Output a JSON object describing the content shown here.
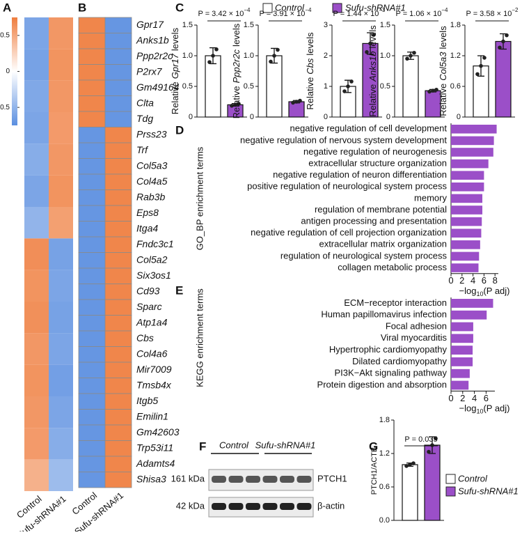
{
  "panel_labels": [
    "A",
    "B",
    "C",
    "D",
    "E",
    "F",
    "G"
  ],
  "legend_c": [
    {
      "name": "Control",
      "color": "#ffffff"
    },
    {
      "name": "Sufu-shRNA#1",
      "color": "#9b4fc8"
    }
  ],
  "blot": {
    "groups": [
      "Control",
      "Sufu-shRNA#1"
    ],
    "rows": [
      {
        "size": "161 kDa",
        "name": "PTCH1"
      },
      {
        "size": "42 kDa",
        "name": "β-actin"
      }
    ]
  },
  "chart_data": [
    {
      "type": "heatmap",
      "x_labels": [
        "Control",
        "Sufu-shRNA#1"
      ],
      "clim": [
        -0.75,
        0.75
      ],
      "colorbar_ticks": [
        0.5,
        0,
        -0.5
      ],
      "values": [
        [
          -0.6,
          0.6
        ],
        [
          -0.62,
          0.62
        ],
        [
          -0.58,
          0.6
        ],
        [
          -0.6,
          0.58
        ],
        [
          -0.55,
          0.6
        ],
        [
          -0.6,
          0.62
        ],
        [
          -0.5,
          0.55
        ],
        [
          0.65,
          -0.62
        ],
        [
          0.62,
          -0.6
        ],
        [
          0.64,
          -0.62
        ],
        [
          0.6,
          -0.6
        ],
        [
          0.62,
          -0.64
        ],
        [
          0.6,
          -0.6
        ],
        [
          0.58,
          -0.55
        ],
        [
          0.45,
          -0.45
        ]
      ]
    },
    {
      "type": "heatmap",
      "x_labels": [
        "Control",
        "Sufu-shRNA#1"
      ],
      "clim": [
        -0.75,
        0.75
      ],
      "rows": [
        "Gpr17",
        "Anks1b",
        "Ppp2r2c",
        "P2rx7",
        "Gm49164",
        "Clta",
        "Tdg",
        "Prss23",
        "Trf",
        "Col5a3",
        "Col4a5",
        "Rab3b",
        "Eps8",
        "Itga4",
        "Fndc3c1",
        "Col5a2",
        "Six3os1",
        "Cd93",
        "Sparc",
        "Atp1a4",
        "Cbs",
        "Col4a6",
        "Mir7009",
        "Tmsb4x",
        "Itgb5",
        "Emilin1",
        "Gm42603",
        "Trp53i11",
        "Adamts4",
        "Shisa3"
      ],
      "label_colors": [
        "#d42a2a",
        "#d42a2a",
        "#d42a2a",
        "#111111",
        "#111111",
        "#111111",
        "#111111",
        "#111111",
        "#111111",
        "#d42a2a",
        "#111111",
        "#111111",
        "#111111",
        "#111111",
        "#111111",
        "#111111",
        "#111111",
        "#111111",
        "#111111",
        "#111111",
        "#d42a2a",
        "#111111",
        "#111111",
        "#111111",
        "#111111",
        "#111111",
        "#111111",
        "#111111",
        "#111111",
        "#111111"
      ],
      "values": [
        [
          0.7,
          -0.7
        ],
        [
          0.7,
          -0.7
        ],
        [
          0.7,
          -0.7
        ],
        [
          0.7,
          -0.7
        ],
        [
          0.7,
          -0.7
        ],
        [
          0.7,
          -0.7
        ],
        [
          0.7,
          -0.7
        ],
        [
          -0.7,
          0.7
        ],
        [
          -0.7,
          0.7
        ],
        [
          -0.7,
          0.7
        ],
        [
          -0.7,
          0.7
        ],
        [
          -0.7,
          0.7
        ],
        [
          -0.7,
          0.7
        ],
        [
          -0.7,
          0.7
        ],
        [
          -0.7,
          0.7
        ],
        [
          -0.7,
          0.7
        ],
        [
          -0.7,
          0.7
        ],
        [
          -0.7,
          0.7
        ],
        [
          -0.7,
          0.7
        ],
        [
          -0.7,
          0.7
        ],
        [
          -0.7,
          0.7
        ],
        [
          -0.7,
          0.7
        ],
        [
          -0.7,
          0.7
        ],
        [
          -0.7,
          0.7
        ],
        [
          -0.7,
          0.7
        ],
        [
          -0.7,
          0.7
        ],
        [
          -0.7,
          0.7
        ],
        [
          -0.7,
          0.7
        ],
        [
          -0.7,
          0.7
        ],
        [
          -0.7,
          0.7
        ]
      ]
    },
    {
      "type": "bar",
      "y_label": "Relative",
      "y_label_gene": "Gpr17",
      "y_label_end": "levels",
      "annotation": "P = 3.42 × 10",
      "annotation_exp": "−4",
      "values": [
        1.0,
        0.2
      ],
      "errors": [
        0.13,
        0.02
      ],
      "ylim": [
        0,
        1.5
      ],
      "yticks": [
        0,
        0.5,
        {
          "value": 1,
          "label": "1.0"
        },
        1.5
      ]
    },
    {
      "type": "bar",
      "y_label": "Relative",
      "y_label_gene": "Ppp2r2c",
      "y_label_end": "levels",
      "annotation": "P = 3.91 × 10",
      "annotation_exp": "−4",
      "values": [
        1.0,
        0.25
      ],
      "errors": [
        0.12,
        0.02
      ],
      "ylim": [
        0,
        1.5
      ],
      "yticks": [
        0,
        0.5,
        {
          "value": 1,
          "label": "1.0"
        },
        1.5
      ]
    },
    {
      "type": "bar",
      "y_label": "Relative",
      "y_label_gene": "Cbs",
      "y_label_end": "levels",
      "annotation": "P = 1.44 × 10",
      "annotation_exp": "−3",
      "values": [
        1.0,
        2.4
      ],
      "errors": [
        0.2,
        0.35
      ],
      "ylim": [
        0,
        3
      ],
      "yticks": [
        0,
        1,
        2,
        3
      ]
    },
    {
      "type": "bar",
      "y_label": "Relative",
      "y_label_gene": "Anks1b",
      "y_label_end": "levels",
      "annotation": "P = 1.06 × 10",
      "annotation_exp": "−4",
      "values": [
        1.0,
        0.43
      ],
      "errors": [
        0.06,
        0.02
      ],
      "ylim": [
        0,
        1.5
      ],
      "yticks": [
        0,
        0.5,
        {
          "value": 1,
          "label": "1.0"
        },
        1.5
      ]
    },
    {
      "type": "bar",
      "y_label": "Relative",
      "y_label_gene": "Col5a3",
      "y_label_end": "levels",
      "annotation": "P = 3.58 × 10",
      "annotation_exp": "−2",
      "values": [
        1.0,
        1.48
      ],
      "errors": [
        0.2,
        0.15
      ],
      "ylim": [
        0,
        1.8
      ],
      "yticks": [
        0,
        0.6,
        1.2,
        1.8
      ]
    },
    {
      "type": "hbar",
      "y_label": "GO_BP enrichment terms",
      "x_label": "−log",
      "x_label_sub": "10",
      "x_label_end": "(P adj)",
      "color": "#9b4fc8",
      "categories": [
        "negative regulation of cell development",
        "negative regulation of nervous system development",
        "negative regulation of neurogenesis",
        "extracellular structure organization",
        "negative regulation of neuron differentiation",
        "positive regulation of neurological system process",
        "memory",
        "regulation of membrane potential",
        "antigen processing and presentation",
        "negative regulation of cell projection organization",
        "extracellular matrix organization",
        "regulation of neurological system process",
        "collagen metabolic process"
      ],
      "label_colors": [
        "#111111",
        "#d42a2a",
        "#d42a2a",
        "#111111",
        "#d42a2a",
        "#d42a2a",
        "#d42a2a",
        "#111111",
        "#111111",
        "#111111",
        "#111111",
        "#d42a2a",
        "#111111"
      ],
      "values": [
        8.3,
        7.8,
        7.7,
        6.8,
        6.0,
        6.0,
        5.7,
        5.7,
        5.6,
        5.5,
        5.3,
        5.1,
        5.0
      ],
      "xlim": [
        0,
        8.6
      ],
      "xticks": [
        0,
        2,
        4,
        6,
        8
      ]
    },
    {
      "type": "hbar",
      "y_label": "KEGG enrichment terms",
      "x_label": "−log",
      "x_label_sub": "10",
      "x_label_end": "(P adj)",
      "color": "#9b4fc8",
      "categories": [
        "ECM−receptor interaction",
        "Human papillomavirus infection",
        "Focal adhesion",
        "Viral myocarditis",
        "Hypertrophic cardiomyopathy",
        "Dilated cardiomyopathy",
        "PI3K−Akt signaling pathway",
        "Protein digestion and absorption"
      ],
      "label_colors": [
        "#d42a2a",
        "#111111",
        "#d42a2a",
        "#111111",
        "#111111",
        "#111111",
        "#d42a2a",
        "#111111"
      ],
      "values": [
        7.2,
        6.1,
        3.8,
        3.8,
        3.7,
        3.7,
        3.2,
        3.0
      ],
      "xlim": [
        0,
        7.5
      ],
      "xticks": [
        0,
        2,
        4,
        6
      ]
    },
    {
      "type": "bar",
      "y_label": "PTCH1/ACTB",
      "annotation": "P = 0.035",
      "legend": [
        {
          "name": "Control",
          "color": "#ffffff"
        },
        {
          "name": "Sufu-shRNA#1",
          "color": "#9b4fc8"
        }
      ],
      "values": [
        1.0,
        1.35
      ],
      "errors": [
        0.03,
        0.15
      ],
      "ylim": [
        0,
        1.8
      ],
      "yticks": [
        {
          "value": 0,
          "label": "0.0"
        },
        0.6,
        1.2,
        1.8
      ]
    }
  ]
}
